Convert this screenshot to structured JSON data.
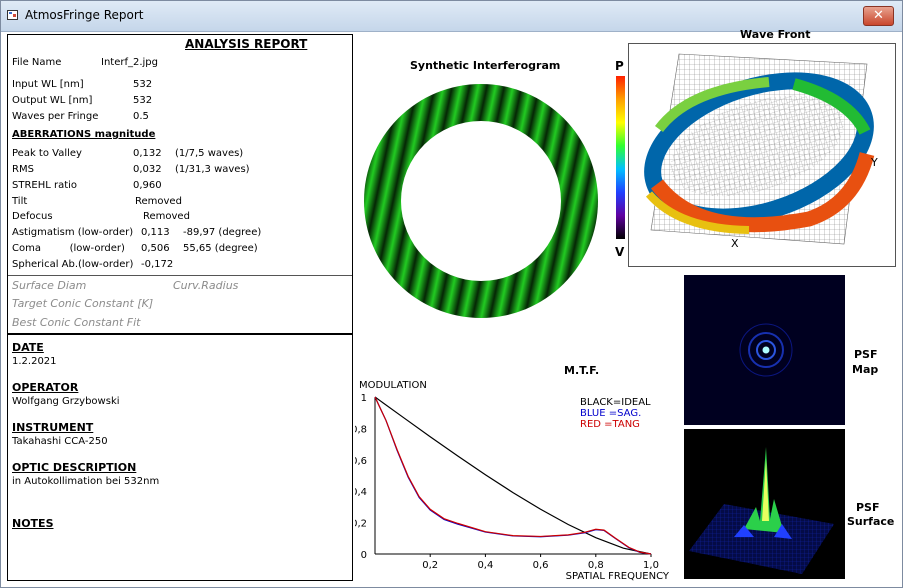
{
  "window": {
    "title": "AtmosFringe  Report",
    "close_label": "✕"
  },
  "report": {
    "heading": "ANALYSIS  REPORT",
    "file_name_label": "File Name",
    "file_name": "Interf_2.jpg",
    "input_wl_label": "Input  WL [nm]",
    "input_wl": "532",
    "output_wl_label": "Output WL [nm]",
    "output_wl": "532",
    "waves_per_fringe_label": "Waves per Fringe",
    "waves_per_fringe": "0.5",
    "aberrations_heading": "ABERRATIONS magnitude",
    "p2v_label": "Peak to Valley",
    "p2v_value": "0,132",
    "p2v_waves": "(1/7,5 waves)",
    "rms_label": "RMS",
    "rms_value": "0,032",
    "rms_waves": "(1/31,3 waves)",
    "strehl_label": "STREHL ratio",
    "strehl_value": "0,960",
    "tilt_label": "Tilt",
    "tilt_value": "Removed",
    "defocus_label": "Defocus",
    "defocus_value": "Removed",
    "astig_label": "Astigmatism  (low-order)",
    "astig_value": "0,113",
    "astig_angle": "-89,97  (degree)",
    "coma_label": "Coma         (low-order)",
    "coma_value": "0,506",
    "coma_angle": "55,65  (degree)",
    "spherical_label": "Spherical Ab.(low-order)",
    "spherical_value": "-0,172",
    "surface_diam_label": "Surface Diam",
    "curv_radius_label": "Curv.Radius",
    "target_conic_label": "Target Conic Constant [K]",
    "best_conic_label": "Best Conic Constant Fit"
  },
  "info": {
    "date_label": "DATE",
    "date": "1.2.2021",
    "operator_label": "OPERATOR",
    "operator": "Wolfgang Grzybowski",
    "instrument_label": "INSTRUMENT",
    "instrument": "Takahashi CCA-250",
    "optic_label": "OPTIC DESCRIPTION",
    "optic": "in Autokollimation bei 532nm",
    "notes_label": "NOTES"
  },
  "interferogram": {
    "title": "Synthetic Interferogram",
    "fringe_color": "#22cc22"
  },
  "colorbar": {
    "top_label": "P",
    "bottom_label": "V"
  },
  "wavefront": {
    "title": "Wave Front",
    "x_label": "X",
    "y_label": "Y"
  },
  "psf": {
    "map_label_1": "PSF",
    "map_label_2": "Map",
    "surface_label_1": "PSF",
    "surface_label_2": "Surface"
  },
  "chart_data": {
    "type": "line",
    "title": "M.T.F.",
    "ylabel": "MODULATION",
    "xlabel": "SPATIAL FREQUENCY",
    "xlim": [
      0,
      1
    ],
    "ylim": [
      0,
      1
    ],
    "x_ticks": [
      "0,2",
      "0,4",
      "0,6",
      "0,8",
      "1,0"
    ],
    "y_ticks": [
      "0",
      "0,2",
      "0,4",
      "0,6",
      "0,8",
      "1"
    ],
    "legend": [
      {
        "text": "BLACK=IDEAL",
        "color": "#000000"
      },
      {
        "text": "BLUE  =SAG.",
        "color": "#0000cc"
      },
      {
        "text": "RED   =TANG",
        "color": "#cc0000"
      }
    ],
    "series": [
      {
        "name": "IDEAL",
        "color": "#000000",
        "x": [
          0,
          0.1,
          0.2,
          0.3,
          0.4,
          0.5,
          0.6,
          0.7,
          0.8,
          0.9,
          1.0
        ],
        "y": [
          1.0,
          0.873,
          0.747,
          0.624,
          0.505,
          0.391,
          0.285,
          0.188,
          0.104,
          0.037,
          0.0
        ]
      },
      {
        "name": "SAG.",
        "color": "#0000cc",
        "x": [
          0,
          0.04,
          0.08,
          0.12,
          0.16,
          0.2,
          0.25,
          0.3,
          0.4,
          0.5,
          0.6,
          0.7,
          0.76,
          0.8,
          0.83,
          0.87,
          0.92,
          0.96,
          1.0
        ],
        "y": [
          1.0,
          0.85,
          0.66,
          0.49,
          0.36,
          0.28,
          0.22,
          0.19,
          0.14,
          0.115,
          0.11,
          0.12,
          0.135,
          0.155,
          0.15,
          0.1,
          0.04,
          0.01,
          0.0
        ]
      },
      {
        "name": "TANG",
        "color": "#cc0000",
        "x": [
          0,
          0.04,
          0.08,
          0.12,
          0.16,
          0.2,
          0.25,
          0.3,
          0.4,
          0.5,
          0.6,
          0.7,
          0.76,
          0.8,
          0.83,
          0.87,
          0.92,
          0.96,
          1.0
        ],
        "y": [
          1.0,
          0.85,
          0.665,
          0.495,
          0.365,
          0.285,
          0.225,
          0.195,
          0.142,
          0.117,
          0.112,
          0.122,
          0.138,
          0.158,
          0.152,
          0.102,
          0.042,
          0.012,
          0.0
        ]
      }
    ]
  }
}
